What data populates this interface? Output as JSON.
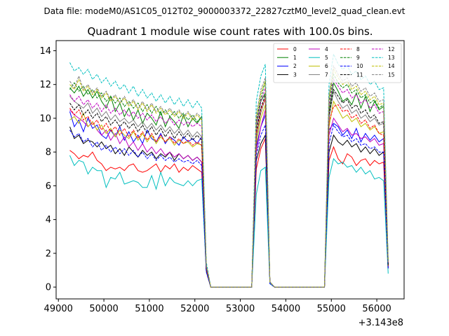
{
  "suptitle": "Data file: modeM0/AS1C05_012T02_9000003372_22827cztM0_level2_quad_clean.evt",
  "chart_data": {
    "type": "line",
    "title": "Quadrant 1 module wise count rates with 100.0s bins.",
    "xlabel": "",
    "ylabel": "",
    "x_offset_label": "+3.143e8",
    "xlim": [
      48950,
      56600
    ],
    "ylim": [
      -0.7,
      14.6
    ],
    "xticks": [
      49000,
      50000,
      51000,
      52000,
      53000,
      54000,
      55000,
      56000
    ],
    "yticks": [
      0,
      2,
      4,
      6,
      8,
      10,
      12,
      14
    ],
    "legend_location": "top-right",
    "x": [
      49250,
      49350,
      49450,
      49550,
      49650,
      49750,
      49850,
      49950,
      50050,
      50150,
      50250,
      50350,
      50450,
      50550,
      50650,
      50750,
      50850,
      50950,
      51050,
      51150,
      51250,
      51350,
      51450,
      51550,
      51650,
      51750,
      51850,
      51950,
      52050,
      52150,
      52250,
      52350,
      53250,
      53350,
      53450,
      53550,
      53650,
      53750,
      54850,
      54950,
      55050,
      55150,
      55250,
      55350,
      55450,
      55550,
      55650,
      55750,
      55850,
      55950,
      56050,
      56150,
      56250
    ],
    "series": [
      {
        "name": "0",
        "color": "#ff0000",
        "dash": "solid",
        "values": [
          8.1,
          7.9,
          7.6,
          7.8,
          7.7,
          8.0,
          7.5,
          7.3,
          6.9,
          7.1,
          7.0,
          7.1,
          6.9,
          7.2,
          7.3,
          6.9,
          6.8,
          6.9,
          7.1,
          7.3,
          6.8,
          7.2,
          7.0,
          7.3,
          6.8,
          7.1,
          6.9,
          7.2,
          7.0,
          6.8,
          1.0,
          0.0,
          0.0,
          7.0,
          8.2,
          8.8,
          0.3,
          0.0,
          0.0,
          7.5,
          8.3,
          7.6,
          7.3,
          7.9,
          7.7,
          7.2,
          7.5,
          7.6,
          7.2,
          7.5,
          7.3,
          7.4,
          1.2
        ]
      },
      {
        "name": "1",
        "color": "#008000",
        "dash": "solid",
        "values": [
          11.8,
          11.5,
          11.9,
          11.3,
          11.7,
          11.2,
          11.6,
          11.0,
          10.6,
          11.3,
          10.4,
          10.9,
          10.1,
          10.6,
          9.9,
          10.5,
          9.7,
          10.3,
          10.0,
          9.6,
          10.4,
          9.5,
          10.1,
          9.8,
          9.4,
          10.2,
          9.5,
          10.0,
          9.7,
          10.1,
          1.3,
          0.0,
          0.0,
          9.5,
          11.0,
          11.5,
          0.3,
          0.0,
          0.0,
          10.4,
          12.1,
          11.6,
          11.0,
          11.2,
          10.8,
          11.5,
          10.6,
          11.3,
          10.4,
          11.0,
          10.5,
          10.7,
          1.5
        ]
      },
      {
        "name": "2",
        "color": "#0000ff",
        "dash": "solid",
        "values": [
          10.4,
          9.5,
          9.9,
          9.2,
          10.0,
          9.4,
          9.6,
          9.0,
          8.8,
          9.3,
          8.9,
          9.5,
          8.7,
          9.2,
          8.6,
          9.0,
          8.5,
          9.3,
          8.8,
          8.6,
          9.1,
          8.5,
          8.9,
          8.7,
          8.4,
          8.9,
          8.6,
          8.8,
          8.5,
          8.9,
          1.0,
          0.0,
          0.0,
          8.3,
          9.5,
          10.2,
          0.3,
          0.0,
          0.0,
          9.3,
          9.7,
          9.5,
          9.0,
          9.3,
          8.8,
          9.4,
          8.6,
          9.1,
          8.7,
          9.0,
          8.6,
          8.8,
          1.2
        ]
      },
      {
        "name": "3",
        "color": "#000000",
        "dash": "solid",
        "values": [
          9.5,
          8.8,
          9.0,
          8.5,
          8.7,
          8.6,
          8.3,
          8.6,
          8.2,
          8.4,
          7.9,
          8.2,
          7.8,
          8.3,
          8.0,
          7.7,
          8.1,
          7.8,
          8.0,
          7.6,
          7.9,
          7.7,
          8.0,
          7.5,
          7.9,
          7.6,
          7.8,
          7.5,
          7.7,
          7.4,
          1.0,
          0.0,
          0.0,
          7.5,
          8.5,
          9.0,
          0.3,
          0.0,
          0.0,
          8.0,
          9.0,
          8.6,
          8.4,
          8.7,
          8.3,
          8.5,
          8.0,
          8.3,
          7.9,
          8.2,
          7.8,
          8.0,
          1.1
        ]
      },
      {
        "name": "4",
        "color": "#bf00bf",
        "dash": "solid",
        "values": [
          10.5,
          10.2,
          10.0,
          9.8,
          9.5,
          9.8,
          9.3,
          9.0,
          9.3,
          8.7,
          9.1,
          8.5,
          8.9,
          8.3,
          8.6,
          8.1,
          8.5,
          8.0,
          8.3,
          7.9,
          8.2,
          7.8,
          8.0,
          7.7,
          7.9,
          7.6,
          7.8,
          7.5,
          7.7,
          7.4,
          1.0,
          0.0,
          0.0,
          8.0,
          9.5,
          10.5,
          0.3,
          0.0,
          0.0,
          9.0,
          10.0,
          9.6,
          9.2,
          9.4,
          9.0,
          9.1,
          8.8,
          8.9,
          8.6,
          8.8,
          8.4,
          8.5,
          1.1
        ]
      },
      {
        "name": "5",
        "color": "#00bfbf",
        "dash": "solid",
        "values": [
          7.8,
          7.2,
          7.5,
          7.4,
          6.7,
          7.1,
          6.9,
          6.9,
          5.9,
          6.5,
          6.4,
          6.8,
          6.1,
          6.2,
          6.3,
          6.2,
          5.9,
          5.9,
          6.6,
          5.8,
          6.8,
          6.0,
          6.5,
          6.2,
          6.1,
          6.0,
          6.3,
          6.0,
          6.3,
          6.4,
          0.9,
          0.0,
          0.0,
          5.5,
          6.9,
          7.1,
          0.2,
          0.0,
          0.0,
          6.5,
          7.6,
          7.3,
          7.4,
          7.1,
          7.2,
          6.8,
          7.1,
          6.7,
          6.9,
          6.4,
          6.5,
          6.3,
          0.8
        ]
      },
      {
        "name": "6",
        "color": "#bfbf00",
        "dash": "solid",
        "values": [
          9.9,
          10.1,
          9.7,
          10.3,
          9.5,
          9.8,
          9.3,
          9.6,
          9.1,
          9.4,
          8.9,
          9.3,
          9.0,
          8.8,
          9.2,
          8.7,
          9.1,
          8.6,
          9.0,
          8.5,
          8.9,
          8.6,
          8.8,
          8.4,
          8.7,
          8.5,
          8.6,
          8.3,
          8.5,
          8.4,
          1.0,
          0.0,
          0.0,
          8.5,
          10.0,
          10.8,
          0.3,
          0.0,
          0.0,
          9.5,
          11.0,
          10.5,
          10.0,
          10.2,
          9.8,
          10.0,
          9.5,
          9.7,
          9.3,
          9.5,
          9.1,
          9.2,
          1.2
        ]
      },
      {
        "name": "7",
        "color": "#808080",
        "dash": "solid",
        "values": [
          11.3,
          11.0,
          10.8,
          10.6,
          10.9,
          10.3,
          10.6,
          10.1,
          10.4,
          9.9,
          10.2,
          9.8,
          10.0,
          9.7,
          9.9,
          9.5,
          9.8,
          9.4,
          9.7,
          9.3,
          9.6,
          9.2,
          9.5,
          9.1,
          9.4,
          9.0,
          9.3,
          8.9,
          9.2,
          8.9,
          1.1,
          0.0,
          0.0,
          8.8,
          10.3,
          11.2,
          0.3,
          0.0,
          0.0,
          10.0,
          11.6,
          11.0,
          10.6,
          10.8,
          10.3,
          10.5,
          10.0,
          10.2,
          9.8,
          10.0,
          9.6,
          9.7,
          1.3
        ]
      },
      {
        "name": "8",
        "color": "#ff0000",
        "dash": "dashed",
        "values": [
          10.6,
          10.2,
          10.5,
          9.9,
          10.1,
          9.6,
          9.9,
          9.3,
          9.7,
          9.2,
          9.5,
          9.0,
          9.4,
          8.9,
          9.3,
          8.8,
          9.2,
          8.7,
          9.1,
          8.6,
          9.0,
          8.6,
          8.9,
          8.5,
          8.8,
          8.5,
          8.7,
          8.4,
          8.6,
          8.4,
          1.0,
          0.0,
          0.0,
          9.0,
          10.5,
          11.2,
          0.3,
          0.0,
          0.0,
          9.8,
          10.7,
          10.8,
          10.4,
          10.5,
          10.0,
          10.2,
          9.7,
          9.9,
          9.4,
          9.6,
          9.1,
          9.0,
          1.2
        ]
      },
      {
        "name": "9",
        "color": "#008000",
        "dash": "dashed",
        "values": [
          11.7,
          12.1,
          11.6,
          11.9,
          11.4,
          11.7,
          11.2,
          11.5,
          11.0,
          11.3,
          10.9,
          11.2,
          10.7,
          11.0,
          10.6,
          10.9,
          10.4,
          10.8,
          10.3,
          10.7,
          10.2,
          10.5,
          10.1,
          10.4,
          10.0,
          10.3,
          9.9,
          10.2,
          9.8,
          10.1,
          1.3,
          0.0,
          0.0,
          9.8,
          11.2,
          12.2,
          0.3,
          0.0,
          0.0,
          11.0,
          12.6,
          12.1,
          11.8,
          12.0,
          11.5,
          11.7,
          11.2,
          11.4,
          10.9,
          11.1,
          10.6,
          10.8,
          1.4
        ]
      },
      {
        "name": "10",
        "color": "#0000ff",
        "dash": "dashed",
        "values": [
          9.3,
          8.9,
          9.1,
          8.6,
          8.8,
          8.3,
          8.6,
          8.1,
          8.4,
          8.0,
          8.3,
          7.9,
          8.2,
          7.8,
          8.1,
          7.7,
          8.0,
          7.6,
          7.9,
          7.5,
          7.8,
          7.5,
          7.7,
          7.4,
          7.6,
          7.4,
          7.5,
          7.3,
          7.5,
          7.2,
          0.9,
          0.0,
          0.0,
          7.8,
          9.0,
          9.6,
          0.2,
          0.0,
          0.0,
          8.5,
          9.6,
          9.2,
          8.9,
          9.0,
          8.6,
          8.8,
          8.4,
          8.5,
          8.2,
          8.3,
          8.0,
          8.0,
          1.1
        ]
      },
      {
        "name": "11",
        "color": "#000000",
        "dash": "dashed",
        "values": [
          10.9,
          10.5,
          10.8,
          10.2,
          10.5,
          10.0,
          10.3,
          9.8,
          10.1,
          9.6,
          9.9,
          9.5,
          9.8,
          9.4,
          9.7,
          9.2,
          9.6,
          9.1,
          9.5,
          9.0,
          9.4,
          8.9,
          9.3,
          8.8,
          9.2,
          8.8,
          9.1,
          8.7,
          9.0,
          8.7,
          1.1,
          0.0,
          0.0,
          9.2,
          10.6,
          11.4,
          0.3,
          0.0,
          0.0,
          10.2,
          11.7,
          11.3,
          10.9,
          11.1,
          10.6,
          10.8,
          10.3,
          10.5,
          10.0,
          10.2,
          9.7,
          9.8,
          1.3
        ]
      },
      {
        "name": "12",
        "color": "#bf00bf",
        "dash": "dashed",
        "values": [
          11.4,
          11.0,
          11.3,
          10.8,
          11.1,
          10.6,
          10.9,
          10.4,
          10.8,
          10.3,
          10.6,
          10.2,
          10.5,
          10.1,
          10.4,
          10.0,
          10.3,
          9.9,
          10.2,
          9.8,
          10.1,
          9.7,
          10.0,
          9.6,
          9.9,
          9.6,
          9.8,
          9.5,
          9.7,
          9.5,
          1.2,
          0.0,
          0.0,
          9.6,
          11.0,
          11.8,
          0.3,
          0.0,
          0.0,
          10.7,
          12.3,
          11.9,
          11.5,
          11.7,
          11.2,
          11.4,
          10.9,
          11.1,
          10.6,
          10.8,
          10.3,
          10.4,
          1.4
        ]
      },
      {
        "name": "13",
        "color": "#00bfbf",
        "dash": "dashed",
        "values": [
          13.3,
          12.8,
          13.0,
          12.6,
          12.9,
          12.3,
          12.6,
          12.1,
          12.4,
          11.9,
          12.2,
          11.7,
          12.0,
          11.5,
          11.9,
          11.3,
          11.7,
          11.2,
          11.5,
          11.0,
          11.4,
          10.9,
          11.3,
          10.8,
          11.2,
          10.7,
          11.1,
          10.6,
          11.0,
          10.6,
          1.5,
          0.0,
          0.0,
          11.0,
          12.5,
          13.2,
          0.3,
          0.0,
          0.0,
          12.0,
          13.8,
          13.2,
          12.9,
          13.1,
          12.6,
          12.8,
          12.3,
          12.5,
          12.0,
          12.2,
          11.7,
          11.8,
          1.6
        ]
      },
      {
        "name": "14",
        "color": "#bfbf00",
        "dash": "dashed",
        "values": [
          12.0,
          11.7,
          12.3,
          11.6,
          11.9,
          11.4,
          11.7,
          11.2,
          11.5,
          11.0,
          11.3,
          10.9,
          11.2,
          10.7,
          11.0,
          10.5,
          10.9,
          10.4,
          10.8,
          10.3,
          10.6,
          10.2,
          10.5,
          10.1,
          10.4,
          10.0,
          10.3,
          9.9,
          10.2,
          9.9,
          1.3,
          0.0,
          0.0,
          10.0,
          11.5,
          12.2,
          0.3,
          0.0,
          0.0,
          11.2,
          12.9,
          12.4,
          12.0,
          12.2,
          11.7,
          11.9,
          11.4,
          11.6,
          11.1,
          11.3,
          10.8,
          10.9,
          1.5
        ]
      },
      {
        "name": "15",
        "color": "#808080",
        "dash": "dashed",
        "values": [
          12.2,
          11.8,
          12.5,
          11.7,
          12.0,
          11.5,
          11.8,
          11.3,
          11.6,
          11.1,
          11.4,
          10.9,
          11.3,
          10.8,
          11.1,
          10.6,
          11.0,
          10.5,
          10.9,
          10.4,
          10.7,
          10.3,
          10.6,
          10.2,
          10.5,
          10.1,
          10.4,
          10.0,
          10.3,
          10.0,
          1.3,
          0.0,
          0.0,
          10.2,
          11.7,
          12.4,
          0.3,
          0.0,
          0.0,
          11.4,
          13.1,
          12.6,
          12.2,
          12.4,
          11.9,
          12.1,
          11.6,
          11.8,
          11.3,
          11.5,
          11.0,
          11.1,
          1.5
        ]
      }
    ]
  }
}
